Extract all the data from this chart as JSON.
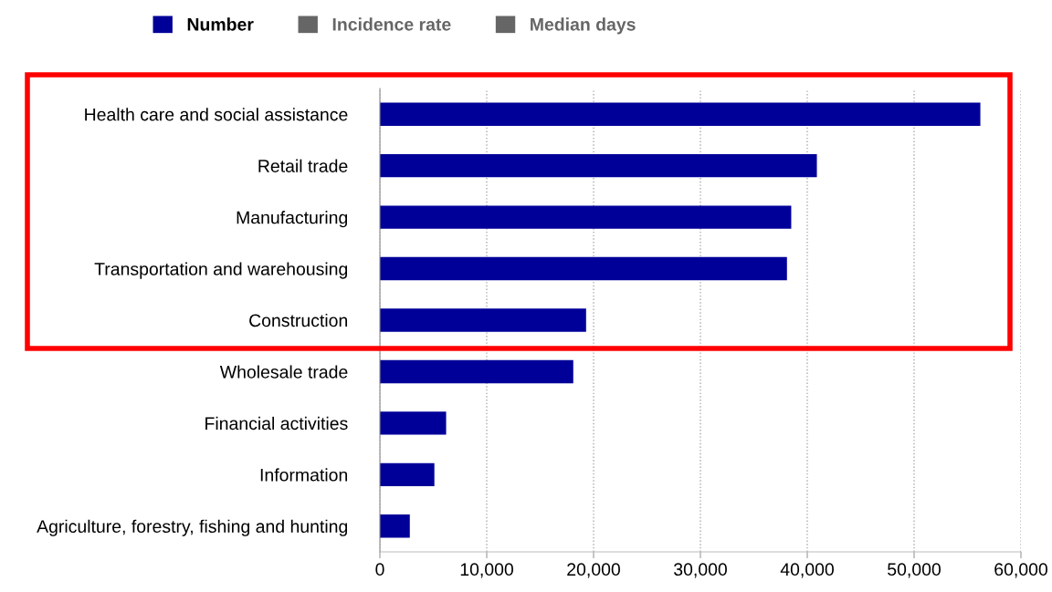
{
  "chart_data": {
    "type": "bar",
    "orientation": "horizontal",
    "categories": [
      "Health care and social assistance",
      "Retail trade",
      "Manufacturing",
      "Transportation and warehousing",
      "Construction",
      "Wholesale trade",
      "Financial activities",
      "Information",
      "Agriculture, forestry, fishing and hunting"
    ],
    "series": [
      {
        "name": "Number",
        "color": "#000099",
        "values": [
          56200,
          40900,
          38500,
          38100,
          19300,
          18100,
          6200,
          5100,
          2800
        ]
      },
      {
        "name": "Incidence rate",
        "color": "#666666",
        "values": [
          null,
          null,
          null,
          null,
          null,
          null,
          null,
          null,
          null
        ]
      },
      {
        "name": "Median days",
        "color": "#666666",
        "values": [
          null,
          null,
          null,
          null,
          null,
          null,
          null,
          null,
          null
        ]
      }
    ],
    "xlim": [
      0,
      60000
    ],
    "xticks": [
      {
        "value": 0,
        "label": "0"
      },
      {
        "value": 10000,
        "label": "10,000"
      },
      {
        "value": 20000,
        "label": "20,000"
      },
      {
        "value": 30000,
        "label": "30,000"
      },
      {
        "value": 40000,
        "label": "40,000"
      },
      {
        "value": 50000,
        "label": "50,000"
      },
      {
        "value": 60000,
        "label": "60,000"
      }
    ],
    "grid": "x",
    "legend": "top"
  }
}
